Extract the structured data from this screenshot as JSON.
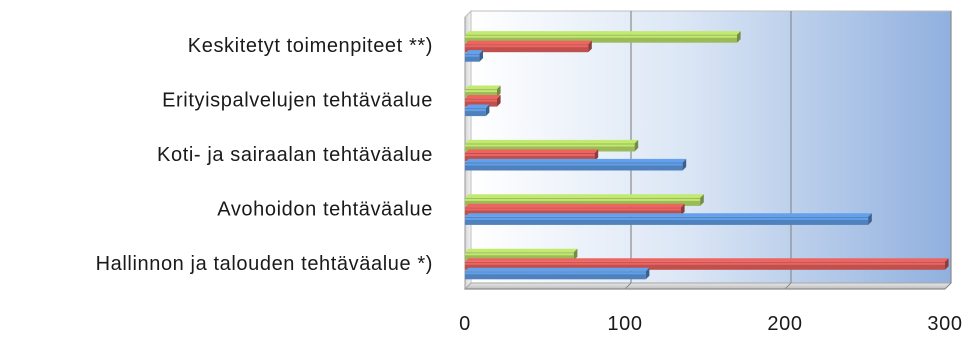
{
  "chart_data": {
    "type": "bar",
    "orientation": "horizontal",
    "style": "3d-clustered-bar",
    "categories": [
      "Keskitetyt toimenpiteet **)",
      "Erityispalvelujen tehtäväalue",
      "Koti- ja sairaalan tehtäväalue",
      "Avohoidon tehtäväalue",
      "Hallinnon ja talouden tehtäväalue *)"
    ],
    "series": [
      {
        "color": "#9bbb59",
        "values": [
          170,
          20,
          106,
          147,
          68
        ]
      },
      {
        "color": "#c0504d",
        "values": [
          77,
          20,
          81,
          135,
          300
        ]
      },
      {
        "color": "#4f81bd",
        "values": [
          9,
          13,
          136,
          252,
          113
        ]
      }
    ],
    "xlim": [
      0,
      300
    ],
    "xticks": [
      "0",
      "100",
      "200",
      "300"
    ],
    "title": "",
    "xlabel": "",
    "ylabel": "",
    "grid": true,
    "legend": "none",
    "background": "gradient-blue"
  }
}
